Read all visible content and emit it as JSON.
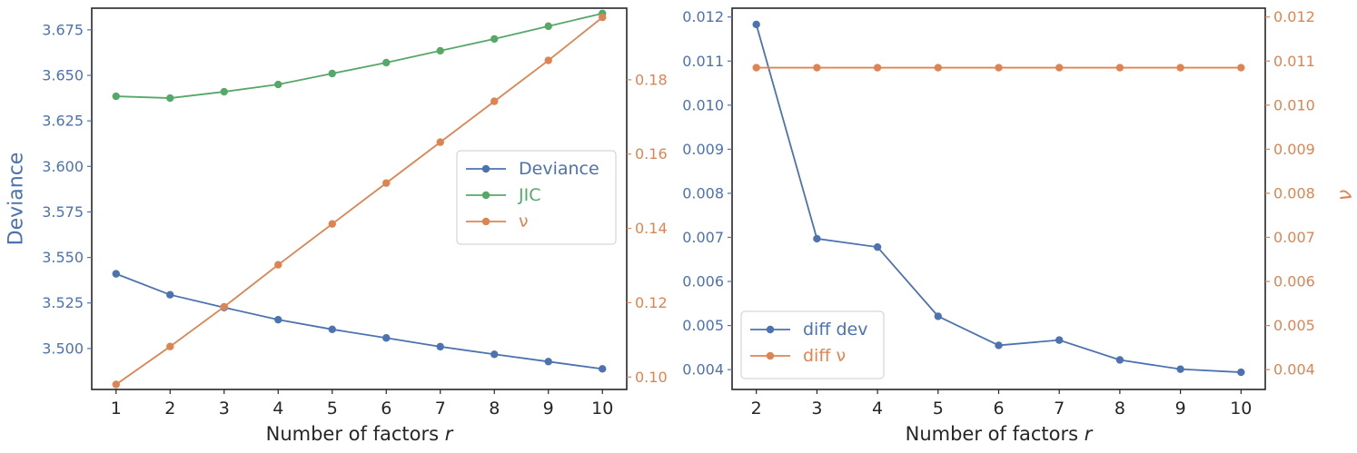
{
  "colors": {
    "blue": "#4c72b0",
    "green": "#55a868",
    "orange": "#dd8452",
    "axes": "#262626",
    "text": "#262626",
    "legend_edge": "#cccccc"
  },
  "chart_data": [
    {
      "type": "line",
      "x": [
        1,
        2,
        3,
        4,
        5,
        6,
        7,
        8,
        9,
        10
      ],
      "xlabel_text": "Number of factors ",
      "xlabel_var": "r",
      "ylabel_left": "Deviance",
      "ylabel_right": "",
      "xlim": [
        0.55,
        10.45
      ],
      "ylim_left": [
        3.4775,
        3.6869
      ],
      "ylim_right": [
        0.09665,
        0.19927
      ],
      "xticks": [
        "1",
        "2",
        "3",
        "4",
        "5",
        "6",
        "7",
        "8",
        "9",
        "10"
      ],
      "yticks_left": [
        "3.500",
        "3.525",
        "3.550",
        "3.575",
        "3.600",
        "3.625",
        "3.650",
        "3.675"
      ],
      "yticks_right": [
        "0.10",
        "0.12",
        "0.14",
        "0.16",
        "0.18"
      ],
      "series": [
        {
          "name": "Deviance",
          "axis": "left",
          "color": "#4c72b0",
          "values": [
            3.541,
            3.5295,
            3.5225,
            3.5158,
            3.5105,
            3.5058,
            3.501,
            3.4968,
            3.4928,
            3.4888
          ]
        },
        {
          "name": "JIC",
          "axis": "left",
          "color": "#55a868",
          "values": [
            3.6385,
            3.6375,
            3.641,
            3.645,
            3.651,
            3.657,
            3.6635,
            3.67,
            3.677,
            3.684
          ]
        },
        {
          "name": "ν",
          "axis": "right",
          "color": "#dd8452",
          "values": [
            0.098,
            0.1082,
            0.1189,
            0.1302,
            0.1412,
            0.1522,
            0.1632,
            0.1742,
            0.1852,
            0.1968
          ]
        }
      ],
      "legend": "center-right"
    },
    {
      "type": "line",
      "x": [
        2,
        3,
        4,
        5,
        6,
        7,
        8,
        9,
        10
      ],
      "xlabel_text": "Number of factors ",
      "xlabel_var": "r",
      "ylabel_left": "",
      "ylabel_right": "ν",
      "xlim": [
        1.6,
        10.4
      ],
      "ylim_left": [
        0.00355,
        0.0122
      ],
      "ylim_right": [
        0.00355,
        0.0122
      ],
      "xticks": [
        "2",
        "3",
        "4",
        "5",
        "6",
        "7",
        "8",
        "9",
        "10"
      ],
      "yticks_left": [
        "0.004",
        "0.005",
        "0.006",
        "0.007",
        "0.008",
        "0.009",
        "0.010",
        "0.011",
        "0.012"
      ],
      "yticks_right": [
        "0.004",
        "0.005",
        "0.006",
        "0.007",
        "0.008",
        "0.009",
        "0.010",
        "0.011",
        "0.012"
      ],
      "series": [
        {
          "name": "diff dev",
          "axis": "left",
          "color": "#4c72b0",
          "values": [
            0.01183,
            0.00697,
            0.00678,
            0.00521,
            0.00455,
            0.00467,
            0.00422,
            0.00401,
            0.00394
          ]
        },
        {
          "name": "diff ν",
          "axis": "right",
          "color": "#dd8452",
          "values": [
            0.01085,
            0.01085,
            0.01085,
            0.01085,
            0.01085,
            0.01085,
            0.01085,
            0.01085,
            0.01085
          ]
        }
      ],
      "legend": "lower-left"
    }
  ]
}
